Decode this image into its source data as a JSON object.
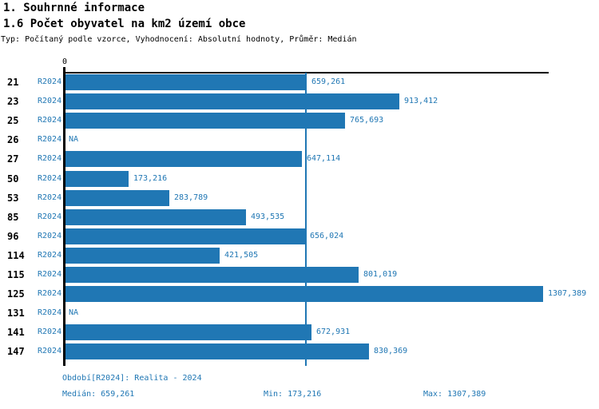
{
  "header": {
    "title_line1": "1. Souhrnné informace",
    "title_line2": "1.6 Počet obyvatel na km2 území obce",
    "subtitle": "Typ: Počítaný podle vzorce, Vyhodnocení: Absolutní hodnoty, Průměr: Medián"
  },
  "colors": {
    "bar_blue": "#2077b4",
    "text_blue": "#2077b4",
    "axis_black": "#000000"
  },
  "chart_data": {
    "type": "bar",
    "orientation": "horizontal",
    "title": "1.6 Počet obyvatel na km2 území obce",
    "categories": [
      "21",
      "23",
      "25",
      "26",
      "27",
      "50",
      "53",
      "85",
      "96",
      "114",
      "115",
      "125",
      "131",
      "141",
      "147"
    ],
    "series": [
      {
        "name": "R2024",
        "values": [
          659.261,
          913.412,
          765.693,
          null,
          647.114,
          173.216,
          283.789,
          493.535,
          656.024,
          421.505,
          801.019,
          1307.389,
          null,
          672.931,
          830.369
        ]
      }
    ],
    "value_labels": [
      "659,261",
      "913,412",
      "765,693",
      "NA",
      "647,114",
      "173,216",
      "283,789",
      "493,535",
      "656,024",
      "421,505",
      "801,019",
      "1307,389",
      "NA",
      "672,931",
      "830,369"
    ],
    "na_text": "NA",
    "series_label": "R2024",
    "xlim": [
      0,
      1322
    ],
    "x_axis_tick_labels": [
      "0"
    ],
    "median_value": 659.261,
    "grid": false,
    "legend": false
  },
  "footer": {
    "period": "Období[R2024]: Realita - 2024",
    "median": "Medián: 659,261",
    "min": "Min: 173,216",
    "max": "Max: 1307,389"
  }
}
